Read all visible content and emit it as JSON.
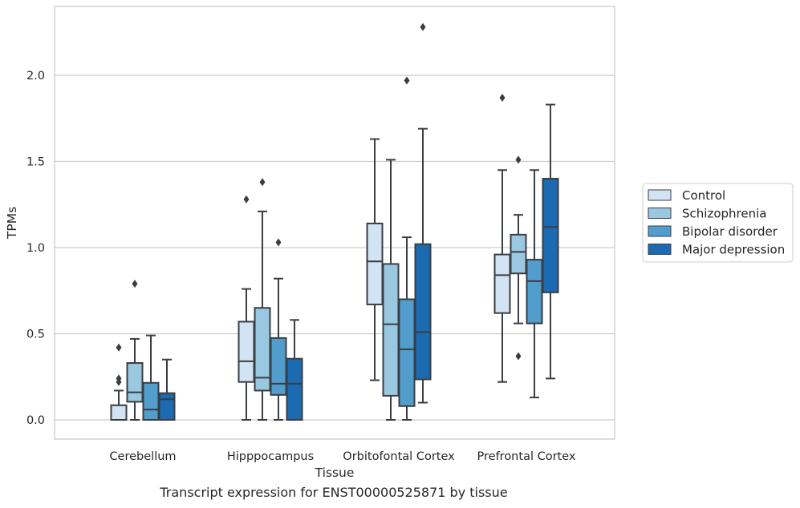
{
  "chart_data": {
    "type": "box",
    "xlabel": "Tissue",
    "ylabel": "TPMs",
    "ylim": [
      -0.11,
      2.4
    ],
    "yticks": [
      0.0,
      0.5,
      1.0,
      1.5,
      2.0
    ],
    "ytick_labels": [
      "0.0",
      "0.5",
      "1.0",
      "1.5",
      "2.0"
    ],
    "grid": "horizontal",
    "legend_position": "right",
    "categories": [
      "Cerebellum",
      "Hipppocampus",
      "Orbitofontal Cortex",
      "Prefrontal Cortex"
    ],
    "series": [
      {
        "name": "Control",
        "color": "#d2e3f3",
        "boxes": [
          {
            "whislo": 0.0,
            "q1": 0.0,
            "med": 0.0,
            "q3": 0.085,
            "whishi": 0.17,
            "fliers": [
              0.22,
              0.24,
              0.42
            ]
          },
          {
            "whislo": 0.0,
            "q1": 0.22,
            "med": 0.34,
            "q3": 0.57,
            "whishi": 0.76,
            "fliers": [
              1.28
            ]
          },
          {
            "whislo": 0.23,
            "q1": 0.67,
            "med": 0.92,
            "q3": 1.14,
            "whishi": 1.63,
            "fliers": []
          },
          {
            "whislo": 0.22,
            "q1": 0.62,
            "med": 0.84,
            "q3": 0.96,
            "whishi": 1.45,
            "fliers": [
              1.87
            ]
          }
        ]
      },
      {
        "name": "Schizophrenia",
        "color": "#9ac8e0",
        "boxes": [
          {
            "whislo": 0.0,
            "q1": 0.105,
            "med": 0.16,
            "q3": 0.33,
            "whishi": 0.47,
            "fliers": [
              0.79
            ]
          },
          {
            "whislo": 0.0,
            "q1": 0.17,
            "med": 0.245,
            "q3": 0.65,
            "whishi": 1.21,
            "fliers": [
              1.38
            ]
          },
          {
            "whislo": 0.0,
            "q1": 0.14,
            "med": 0.555,
            "q3": 0.905,
            "whishi": 1.51,
            "fliers": []
          },
          {
            "whislo": 0.56,
            "q1": 0.85,
            "med": 0.975,
            "q3": 1.075,
            "whishi": 1.19,
            "fliers": [
              1.51,
              0.37
            ]
          }
        ]
      },
      {
        "name": "Bipolar disorder",
        "color": "#529dcc",
        "boxes": [
          {
            "whislo": 0.0,
            "q1": 0.0,
            "med": 0.06,
            "q3": 0.215,
            "whishi": 0.49,
            "fliers": []
          },
          {
            "whislo": 0.0,
            "q1": 0.145,
            "med": 0.21,
            "q3": 0.475,
            "whishi": 0.82,
            "fliers": [
              1.03
            ]
          },
          {
            "whislo": 0.0,
            "q1": 0.08,
            "med": 0.41,
            "q3": 0.7,
            "whishi": 1.06,
            "fliers": [
              1.97
            ]
          },
          {
            "whislo": 0.13,
            "q1": 0.56,
            "med": 0.805,
            "q3": 0.93,
            "whishi": 1.45,
            "fliers": []
          }
        ]
      },
      {
        "name": "Major depression",
        "color": "#1c6aaf",
        "boxes": [
          {
            "whislo": 0.0,
            "q1": 0.0,
            "med": 0.12,
            "q3": 0.155,
            "whishi": 0.35,
            "fliers": []
          },
          {
            "whislo": 0.0,
            "q1": 0.0,
            "med": 0.21,
            "q3": 0.355,
            "whishi": 0.58,
            "fliers": []
          },
          {
            "whislo": 0.1,
            "q1": 0.235,
            "med": 0.51,
            "q3": 1.02,
            "whishi": 1.69,
            "fliers": [
              2.28
            ]
          },
          {
            "whislo": 0.24,
            "q1": 0.74,
            "med": 1.12,
            "q3": 1.4,
            "whishi": 1.83,
            "fliers": []
          }
        ]
      }
    ]
  },
  "caption": "Transcript expression for ENST00000525871 by tissue",
  "colors": {
    "edge": "#3a3d42",
    "grid": "#cccccc",
    "frame": "#cccccc"
  }
}
